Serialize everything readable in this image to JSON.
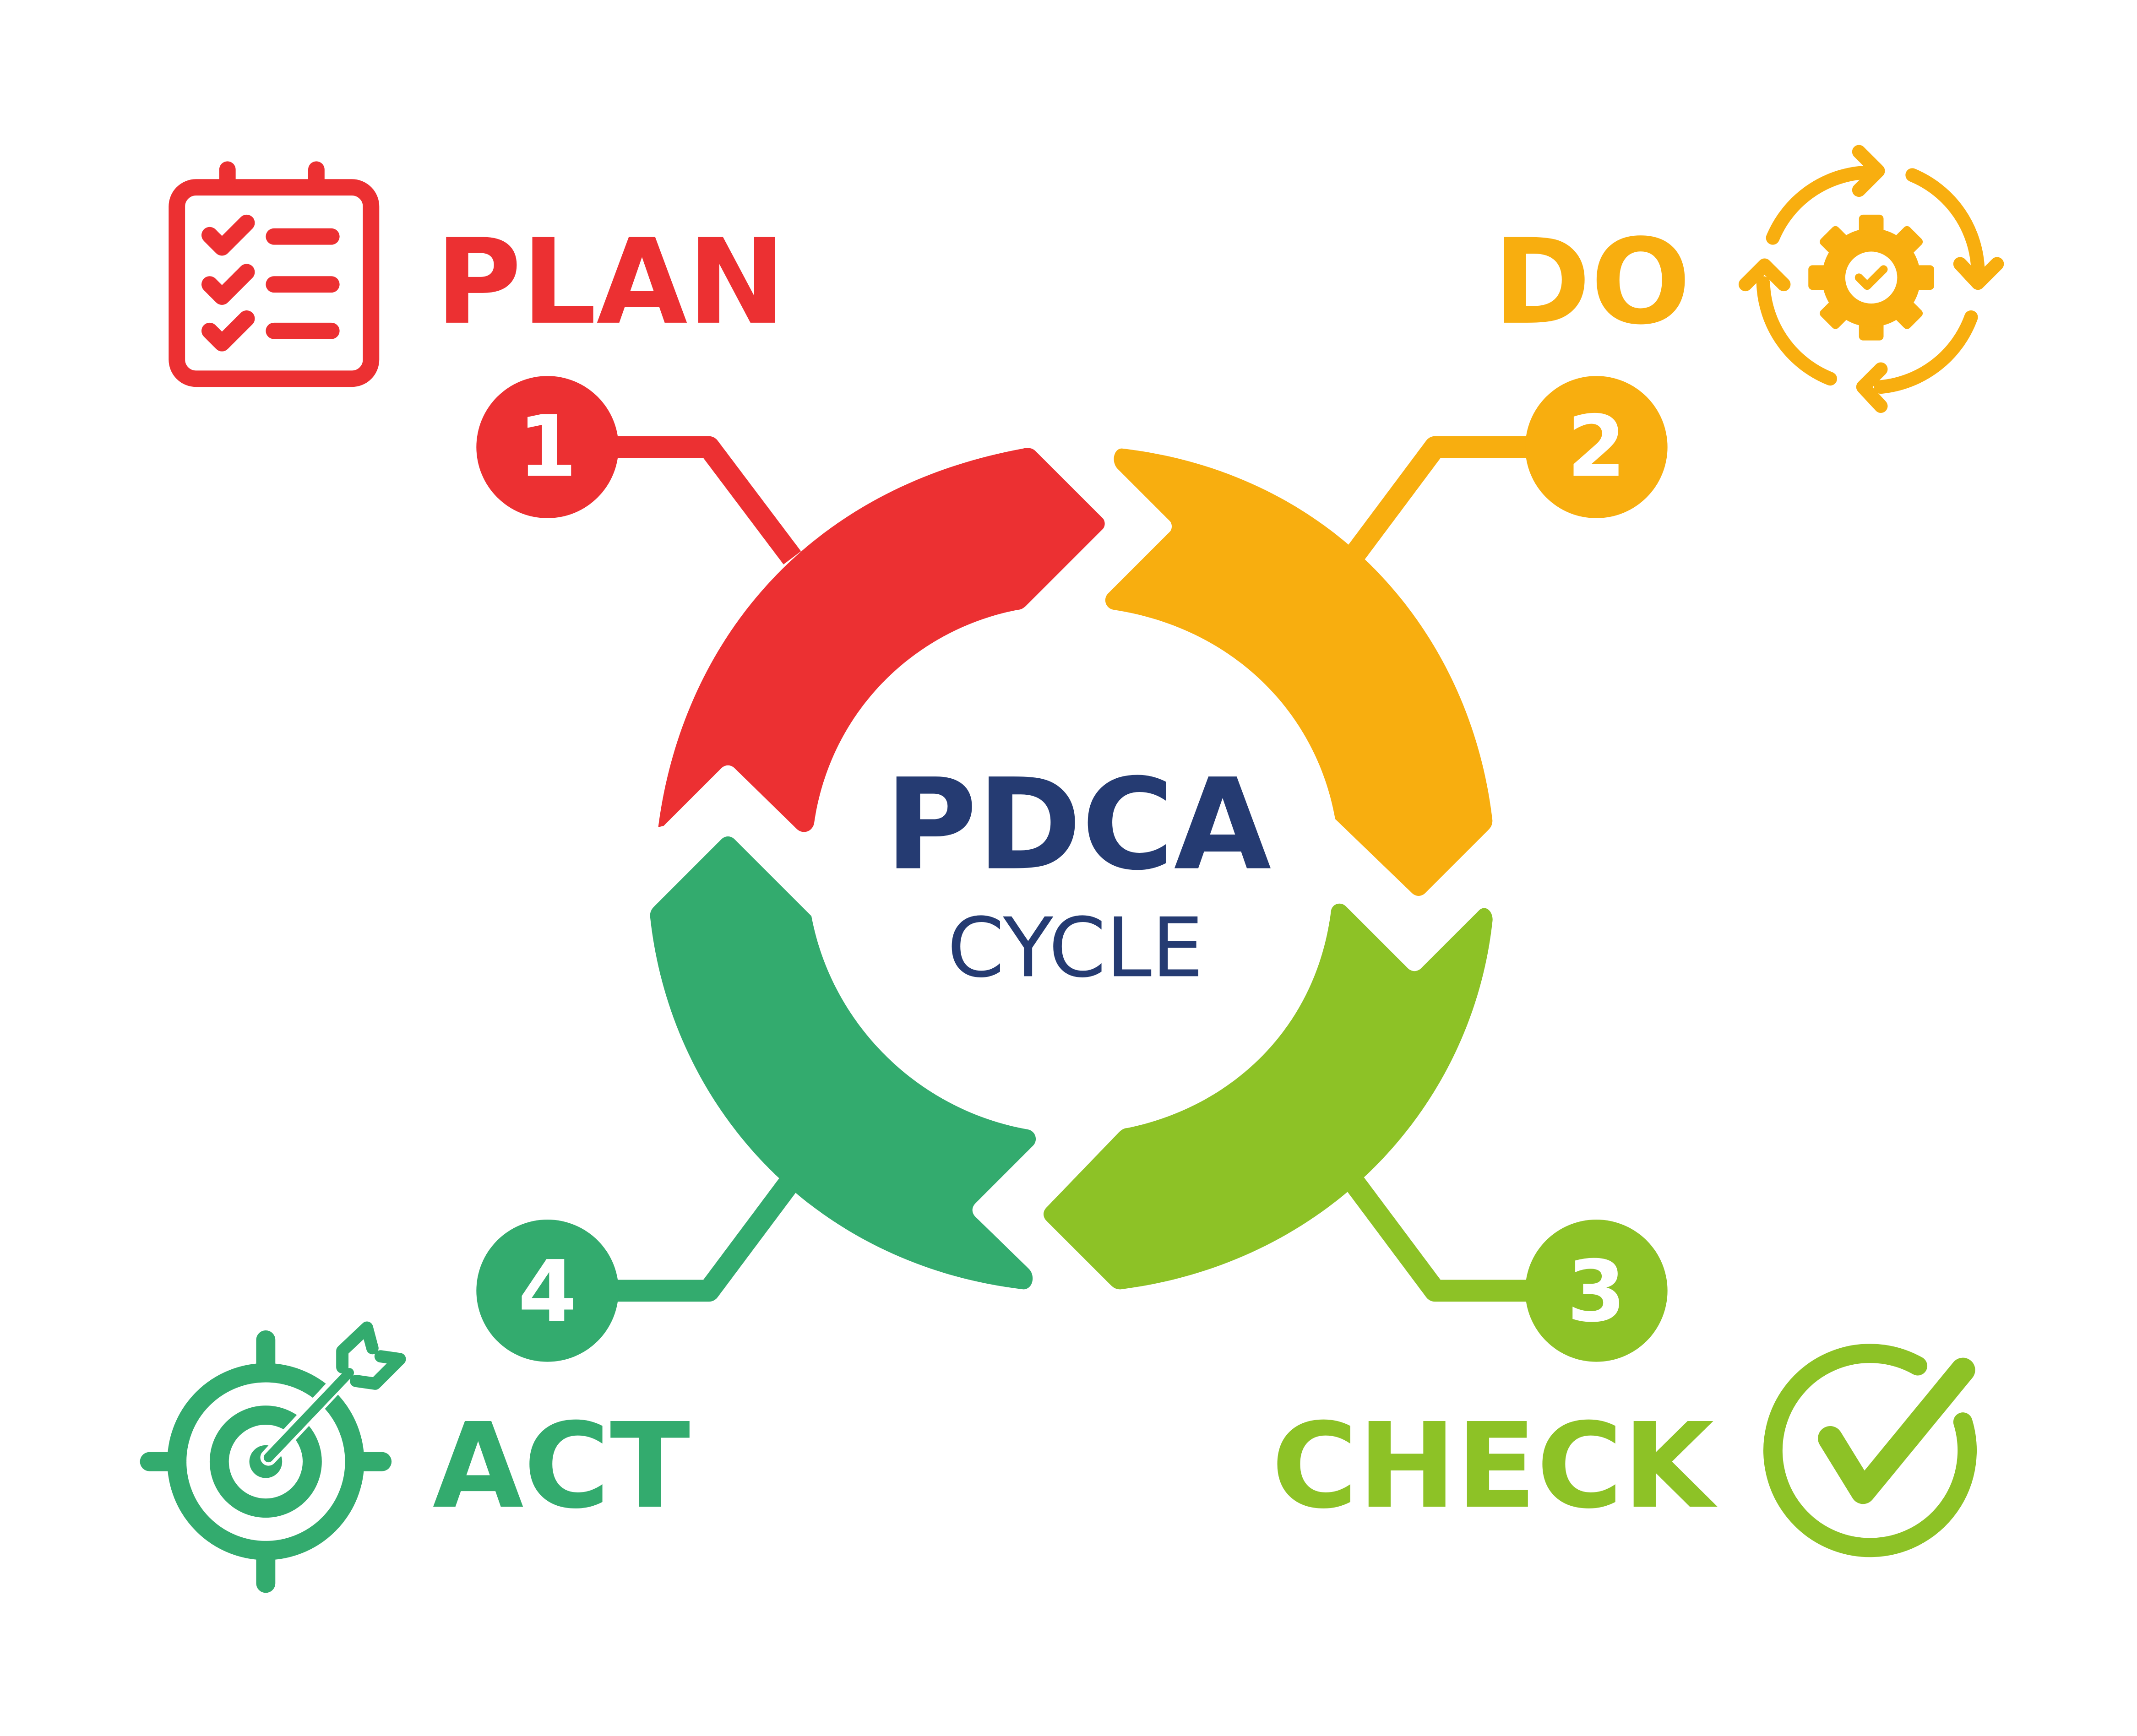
{
  "title": {
    "main": "PDCA",
    "sub": "CYCLE",
    "color": "#253b72"
  },
  "stages": [
    {
      "key": "plan",
      "label": "PLAN",
      "number": "1",
      "color": "#ec3032",
      "icon": "clipboard-checklist-icon"
    },
    {
      "key": "do",
      "label": "DO",
      "number": "2",
      "color": "#f8ae0f",
      "icon": "gear-cycle-icon"
    },
    {
      "key": "check",
      "label": "CHECK",
      "number": "3",
      "color": "#8dc226",
      "icon": "checkmark-circle-icon"
    },
    {
      "key": "act",
      "label": "ACT",
      "number": "4",
      "color": "#33ab6e",
      "icon": "target-arrow-icon"
    }
  ],
  "background": "#ffffff"
}
